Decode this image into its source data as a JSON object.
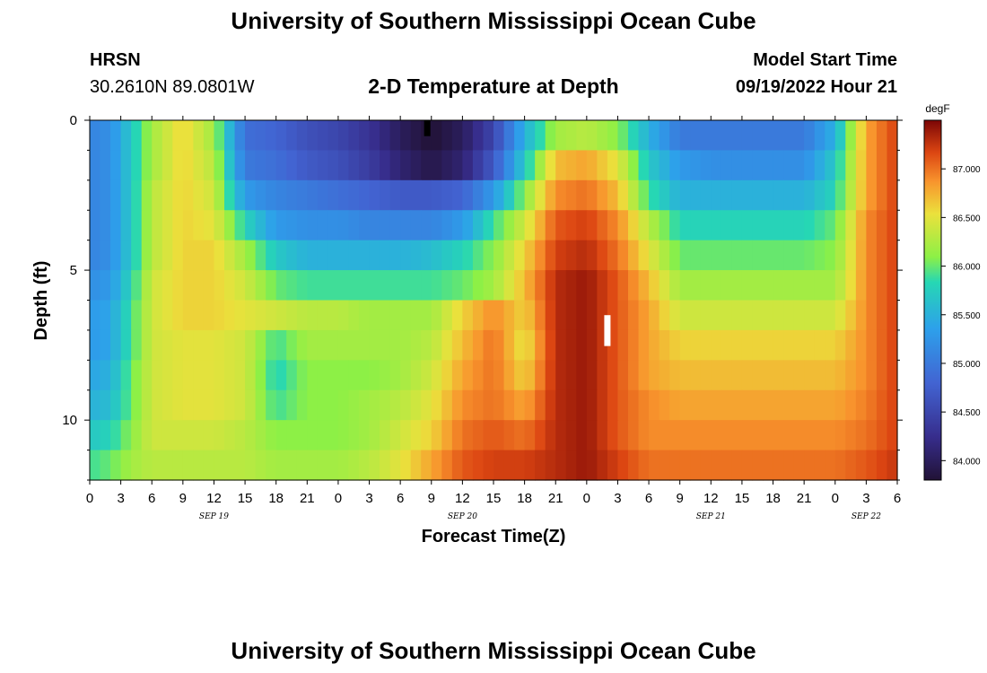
{
  "header": {
    "title": "University of Southern Mississippi Ocean Cube",
    "station": "HRSN",
    "coords": "30.2610N  89.0801W",
    "plot_title": "2-D Temperature at Depth",
    "model_start_label": "Model Start Time",
    "model_start_value": "09/19/2022 Hour 21"
  },
  "footer": {
    "title": "University of Southern Mississippi Ocean Cube"
  },
  "chart_data": {
    "type": "heatmap",
    "title": "2-D Temperature at Depth",
    "xlabel": "Forecast Time(Z)",
    "ylabel": "Depth (ft)",
    "colorbar_unit": "degF",
    "colorbar_ticks": [
      "84.000",
      "84.500",
      "85.000",
      "85.500",
      "86.000",
      "86.500",
      "87.000"
    ],
    "zlim": [
      83.8,
      87.5
    ],
    "y_ticks": [
      "0",
      "5",
      "10"
    ],
    "ylim": [
      0,
      12
    ],
    "x_ticks": [
      "0",
      "3",
      "6",
      "9",
      "12",
      "15",
      "18",
      "21",
      "0",
      "3",
      "6",
      "9",
      "12",
      "15",
      "18",
      "21",
      "0",
      "3",
      "6",
      "9",
      "12",
      "15",
      "18",
      "21",
      "0",
      "3",
      "6"
    ],
    "x_hours": [
      0,
      78
    ],
    "dates": [
      {
        "label": "SEP 19",
        "hour": 12
      },
      {
        "label": "SEP 20",
        "hour": 36
      },
      {
        "label": "SEP 21",
        "hour": 60
      },
      {
        "label": "SEP 22",
        "hour": 75
      }
    ],
    "depths_ft": [
      0.5,
      1.5,
      2.5,
      3.5,
      4.5,
      5.5,
      6.5,
      7.5,
      8.5,
      9.5,
      10.5,
      11.5
    ],
    "time_keys_hours": [
      0,
      2,
      4,
      6,
      9,
      12,
      15,
      18,
      21,
      24,
      27,
      30,
      33,
      36,
      39,
      42,
      45,
      48,
      51,
      54,
      57,
      60,
      63,
      66,
      69,
      72,
      75,
      78
    ],
    "temperature_degF": [
      [
        85.1,
        85.2,
        85.7,
        86.2,
        86.6,
        86.2,
        84.9,
        84.8,
        84.6,
        84.5,
        84.3,
        84.0,
        83.8,
        84.0,
        84.5,
        85.5,
        86.2,
        86.3,
        86.1,
        85.5,
        85.0,
        85.0,
        85.0,
        85.0,
        85.0,
        85.5,
        86.8,
        87.2
      ],
      [
        85.1,
        85.2,
        85.7,
        86.2,
        86.6,
        86.3,
        85.0,
        84.9,
        84.7,
        84.6,
        84.4,
        84.1,
        83.9,
        84.1,
        84.7,
        85.7,
        86.7,
        86.8,
        86.5,
        85.7,
        85.3,
        85.2,
        85.2,
        85.2,
        85.2,
        85.7,
        86.8,
        87.2
      ],
      [
        85.1,
        85.2,
        85.7,
        86.3,
        86.6,
        86.4,
        85.3,
        85.1,
        85.0,
        84.9,
        84.8,
        84.7,
        84.7,
        84.8,
        85.3,
        86.1,
        86.9,
        87.0,
        86.7,
        85.9,
        85.5,
        85.5,
        85.5,
        85.5,
        85.5,
        85.8,
        86.8,
        87.2
      ],
      [
        85.1,
        85.2,
        85.7,
        86.3,
        86.6,
        86.5,
        85.8,
        85.3,
        85.2,
        85.2,
        85.1,
        85.1,
        85.1,
        85.3,
        85.9,
        86.4,
        87.1,
        87.2,
        86.9,
        86.3,
        85.8,
        85.8,
        85.8,
        85.8,
        85.8,
        86.0,
        86.9,
        87.2
      ],
      [
        85.1,
        85.2,
        85.7,
        86.3,
        86.6,
        86.6,
        86.2,
        85.7,
        85.5,
        85.5,
        85.5,
        85.5,
        85.6,
        85.8,
        86.1,
        86.6,
        87.2,
        87.3,
        87.0,
        86.5,
        86.0,
        86.0,
        86.0,
        86.0,
        86.0,
        86.1,
        86.9,
        87.2
      ],
      [
        85.2,
        85.3,
        85.8,
        86.4,
        86.6,
        86.6,
        86.4,
        86.0,
        85.9,
        85.9,
        85.9,
        85.9,
        85.9,
        86.0,
        86.2,
        86.7,
        87.3,
        87.4,
        87.1,
        86.7,
        86.2,
        86.2,
        86.2,
        86.2,
        86.2,
        86.2,
        86.9,
        87.2
      ],
      [
        85.3,
        85.4,
        85.9,
        86.4,
        86.6,
        86.6,
        86.5,
        86.4,
        86.3,
        86.3,
        86.2,
        86.2,
        86.2,
        86.6,
        86.9,
        86.6,
        87.3,
        87.4,
        87.1,
        86.8,
        86.4,
        86.4,
        86.4,
        86.4,
        86.4,
        86.4,
        86.9,
        87.2
      ],
      [
        85.3,
        85.4,
        85.9,
        86.4,
        86.5,
        86.5,
        86.4,
        85.9,
        86.2,
        86.2,
        86.2,
        86.2,
        86.3,
        86.7,
        87.0,
        86.5,
        87.3,
        87.4,
        87.1,
        86.8,
        86.6,
        86.6,
        86.6,
        86.6,
        86.6,
        86.6,
        86.9,
        87.2
      ],
      [
        85.4,
        85.5,
        86.0,
        86.4,
        86.5,
        86.5,
        86.4,
        85.8,
        86.1,
        86.1,
        86.1,
        86.2,
        86.4,
        86.8,
        87.0,
        86.6,
        87.3,
        87.4,
        87.1,
        86.8,
        86.7,
        86.7,
        86.7,
        86.7,
        86.7,
        86.7,
        86.9,
        87.2
      ],
      [
        85.5,
        85.6,
        86.0,
        86.4,
        86.5,
        86.5,
        86.4,
        85.9,
        86.1,
        86.1,
        86.2,
        86.3,
        86.5,
        86.9,
        87.0,
        86.8,
        87.3,
        87.4,
        87.1,
        86.9,
        86.8,
        86.8,
        86.8,
        86.8,
        86.8,
        86.8,
        86.95,
        87.2
      ],
      [
        85.7,
        85.8,
        86.1,
        86.4,
        86.4,
        86.4,
        86.3,
        86.1,
        86.1,
        86.1,
        86.2,
        86.4,
        86.6,
        87.0,
        87.1,
        87.0,
        87.3,
        87.4,
        87.1,
        86.9,
        86.9,
        86.9,
        86.9,
        86.9,
        86.9,
        86.9,
        87.0,
        87.2
      ],
      [
        85.9,
        86.0,
        86.2,
        86.3,
        86.3,
        86.3,
        86.3,
        86.2,
        86.2,
        86.2,
        86.3,
        86.5,
        86.8,
        87.1,
        87.2,
        87.2,
        87.3,
        87.4,
        87.2,
        87.0,
        87.0,
        87.0,
        87.0,
        87.0,
        87.0,
        87.0,
        87.1,
        87.25
      ]
    ],
    "markers": [
      {
        "hour": 32.6,
        "depth_ft": [
          0,
          0.5
        ],
        "color": "#000000"
      },
      {
        "hour": 50.0,
        "depth_ft": [
          6.5,
          7.5
        ],
        "color": "#ffffff"
      }
    ]
  }
}
